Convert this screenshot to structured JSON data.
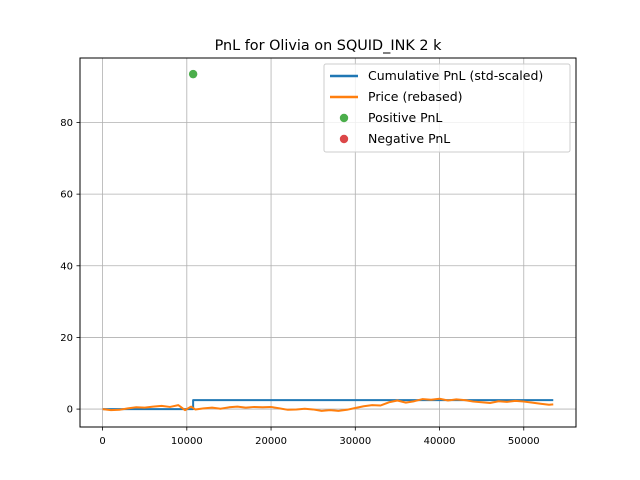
{
  "chart_data": {
    "type": "line",
    "title": "PnL for Olivia on SQUID_INK 2 k",
    "xlabel": "",
    "ylabel": "",
    "xlim": [
      -2680,
      56200
    ],
    "ylim": [
      -5,
      98
    ],
    "xticks": [
      0,
      10000,
      20000,
      30000,
      40000,
      50000
    ],
    "yticks": [
      0,
      20,
      40,
      60,
      80
    ],
    "grid": true,
    "legend": {
      "position": "top-right"
    },
    "series": [
      {
        "name": "Cumulative PnL (std-scaled)",
        "kind": "line",
        "color": "#1f77b4",
        "x": [
          0,
          10750,
          10750,
          53500
        ],
        "y": [
          0,
          0,
          2.5,
          2.5
        ]
      },
      {
        "name": "Price (rebased)",
        "kind": "line",
        "color": "#ff7f0e",
        "x": [
          0,
          1000,
          2000,
          3000,
          4000,
          5000,
          6000,
          7000,
          8000,
          9000,
          9800,
          10500,
          11000,
          12000,
          13000,
          14000,
          15000,
          16000,
          17000,
          18000,
          19000,
          20000,
          21000,
          22000,
          23000,
          24000,
          25000,
          26000,
          27000,
          28000,
          29000,
          30000,
          31000,
          32000,
          33000,
          34000,
          35000,
          36000,
          37000,
          38000,
          39000,
          40000,
          41000,
          42000,
          43000,
          44000,
          45000,
          46000,
          47000,
          48000,
          49000,
          50000,
          51000,
          52000,
          53000,
          53500
        ],
        "y": [
          0,
          -0.3,
          -0.2,
          0.2,
          0.5,
          0.4,
          0.7,
          0.9,
          0.6,
          1.1,
          -0.3,
          0.7,
          -0.1,
          0.2,
          0.4,
          0.1,
          0.5,
          0.7,
          0.4,
          0.6,
          0.5,
          0.6,
          0.2,
          -0.2,
          -0.1,
          0.1,
          -0.1,
          -0.5,
          -0.3,
          -0.5,
          -0.2,
          0.3,
          0.8,
          1.1,
          1.0,
          1.9,
          2.4,
          1.8,
          2.2,
          2.8,
          2.6,
          2.9,
          2.4,
          2.7,
          2.5,
          2.1,
          1.9,
          1.7,
          2.2,
          2.0,
          2.3,
          2.1,
          1.8,
          1.5,
          1.2,
          1.3
        ]
      },
      {
        "name": "Positive PnL",
        "kind": "scatter",
        "color": "#2ca02c",
        "x": [
          10750
        ],
        "y": [
          93.5
        ]
      },
      {
        "name": "Negative PnL",
        "kind": "scatter",
        "color": "#d62728",
        "x": [],
        "y": []
      }
    ]
  }
}
